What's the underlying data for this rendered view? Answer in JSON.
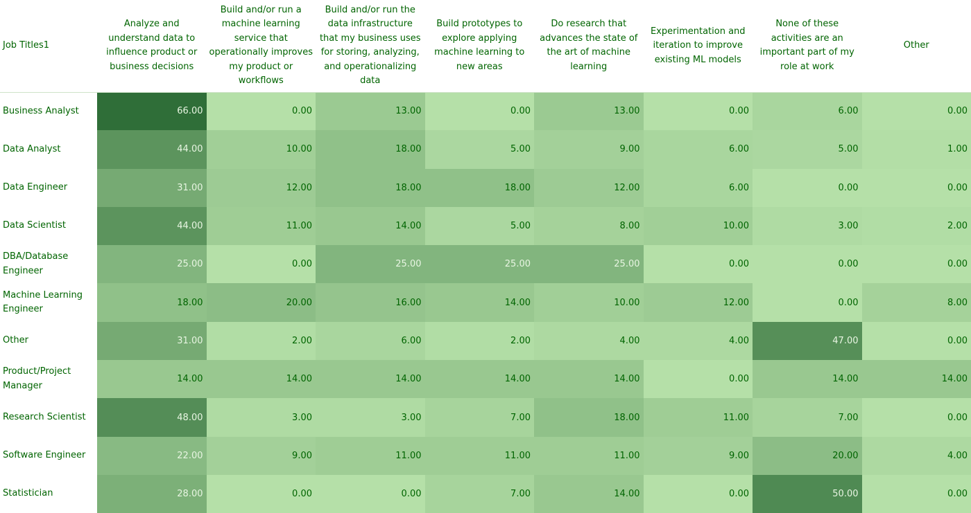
{
  "chart_data": {
    "type": "heatmap",
    "corner_label": "Job Titles1",
    "columns": [
      "Analyze and understand data to influence product or business decisions",
      "Build and/or run a machine learning service that operationally improves my product or workflows",
      "Build and/or run the data infrastructure that my business uses for storing, analyzing, and operationalizing data",
      "Build prototypes to explore applying machine learning to new areas",
      "Do research that advances the state of the art of machine learning",
      "Experimentation and iteration to improve existing ML models",
      "None of these activities are an important part of my role at work",
      "Other"
    ],
    "rows": [
      "Business Analyst",
      "Data Analyst",
      "Data Engineer",
      "Data Scientist",
      "DBA/Database Engineer",
      "Machine Learning Engineer",
      "Other",
      "Product/Project Manager",
      "Research Scientist",
      "Software Engineer",
      "Statistician"
    ],
    "values": [
      [
        66.0,
        0.0,
        13.0,
        0.0,
        13.0,
        0.0,
        6.0,
        0.0
      ],
      [
        44.0,
        10.0,
        18.0,
        5.0,
        9.0,
        6.0,
        5.0,
        1.0
      ],
      [
        31.0,
        12.0,
        18.0,
        18.0,
        12.0,
        6.0,
        0.0,
        0.0
      ],
      [
        44.0,
        11.0,
        14.0,
        5.0,
        8.0,
        10.0,
        3.0,
        2.0
      ],
      [
        25.0,
        0.0,
        25.0,
        25.0,
        25.0,
        0.0,
        0.0,
        0.0
      ],
      [
        18.0,
        20.0,
        16.0,
        14.0,
        10.0,
        12.0,
        0.0,
        8.0
      ],
      [
        31.0,
        2.0,
        6.0,
        2.0,
        4.0,
        4.0,
        47.0,
        0.0
      ],
      [
        14.0,
        14.0,
        14.0,
        14.0,
        14.0,
        0.0,
        14.0,
        14.0
      ],
      [
        48.0,
        3.0,
        3.0,
        7.0,
        18.0,
        11.0,
        7.0,
        0.0
      ],
      [
        22.0,
        9.0,
        11.0,
        11.0,
        11.0,
        9.0,
        20.0,
        4.0
      ],
      [
        28.0,
        0.0,
        0.0,
        7.0,
        14.0,
        0.0,
        50.0,
        0.0
      ]
    ],
    "decimals": 2,
    "color_scale": {
      "min_value": 0,
      "max_value": 66,
      "low_color": "#b5e0a8",
      "high_color": "#2f6e38",
      "light_text_color": "#e8f5e2",
      "dark_text_color": "#006400"
    }
  }
}
